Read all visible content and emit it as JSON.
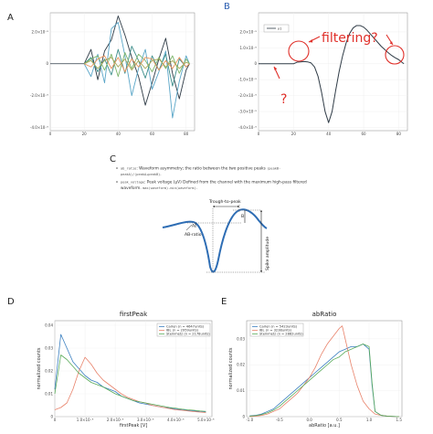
{
  "panel_letters": {
    "A": "A",
    "B": "B",
    "C": "C",
    "D": "D",
    "E": "E"
  },
  "colors": {
    "dark": "#2f3b46",
    "blue": "#5aa6c8",
    "teal": "#3c8d8a",
    "green": "#7cb56a",
    "orange": "#e8925a",
    "olive": "#a7a857",
    "red": "#e0302a",
    "spike": "#2e6db4",
    "carlen": "#3a7fc0",
    "ibl": "#e8826a",
    "steinmetz": "#5aab5a"
  },
  "chart_data": [
    {
      "id": "A",
      "type": "line",
      "xlim": [
        0,
        85
      ],
      "ylim": [
        -4.2e-05,
        3.2e-05
      ],
      "xticks": [
        0,
        20,
        40,
        60,
        80
      ],
      "yticks": [
        {
          "v": 2e-05,
          "label": "2.0×10⁻⁵"
        },
        {
          "v": 0,
          "label": "0"
        },
        {
          "v": -2e-05,
          "label": "-2.0×10⁻⁵"
        },
        {
          "v": -4e-05,
          "label": "-4.0×10⁻⁵"
        }
      ],
      "flat_x": [
        0,
        20
      ],
      "series": [
        {
          "color": "dark",
          "x": [
            20,
            24,
            28,
            32,
            36,
            40,
            44,
            48,
            52,
            56,
            60,
            64,
            68,
            72,
            76,
            80,
            82
          ],
          "y": [
            0,
            9e-06,
            -1e-05,
            8e-06,
            1.5e-05,
            3e-05,
            1.8e-05,
            4e-06,
            -8e-06,
            -2.6e-05,
            -1.2e-05,
            3e-06,
            1.6e-05,
            -6e-06,
            -2.2e-05,
            -4e-06,
            0
          ]
        },
        {
          "color": "blue",
          "x": [
            20,
            24,
            28,
            32,
            36,
            40,
            44,
            48,
            52,
            56,
            60,
            64,
            68,
            72,
            76,
            80,
            82
          ],
          "y": [
            0,
            -8e-06,
            6e-06,
            -1.2e-05,
            2.2e-05,
            2.6e-05,
            5e-06,
            -2e-05,
            -3e-06,
            9e-06,
            -1.6e-05,
            -5e-06,
            8e-06,
            -3.4e-05,
            -1.1e-05,
            5e-06,
            0
          ]
        },
        {
          "color": "teal",
          "x": [
            20,
            24,
            28,
            32,
            36,
            40,
            44,
            48,
            52,
            56,
            60,
            64,
            68,
            72,
            76,
            80,
            82
          ],
          "y": [
            0,
            4e-06,
            -5e-06,
            3e-06,
            -7e-06,
            9e-06,
            -6e-06,
            1.1e-05,
            2e-06,
            -9e-06,
            5e-06,
            -4e-06,
            6e-06,
            -1.4e-05,
            3e-06,
            -2e-06,
            0
          ]
        },
        {
          "color": "green",
          "x": [
            20,
            24,
            28,
            32,
            36,
            40,
            44,
            48,
            52,
            56,
            60,
            64,
            68,
            72,
            76,
            80,
            82
          ],
          "y": [
            0,
            3e-06,
            5e-06,
            -4e-06,
            6e-06,
            -8e-06,
            7e-06,
            -3e-06,
            6e-06,
            2e-06,
            -5e-06,
            4e-06,
            -3e-06,
            5e-06,
            -6e-06,
            3e-06,
            0
          ]
        },
        {
          "color": "orange",
          "x": [
            20,
            24,
            28,
            32,
            36,
            40,
            44,
            48,
            52,
            56,
            60,
            64,
            68,
            72,
            76,
            80,
            82
          ],
          "y": [
            0,
            -2e-06,
            3e-06,
            5e-06,
            -3e-06,
            4e-06,
            -5e-06,
            3e-06,
            -2e-06,
            4e-06,
            3e-06,
            -4e-06,
            2e-06,
            -3e-06,
            4e-06,
            -2e-06,
            0
          ]
        },
        {
          "color": "olive",
          "x": [
            20,
            24,
            28,
            32,
            36,
            40,
            44,
            48,
            52,
            56,
            60,
            64,
            68,
            72,
            76,
            80,
            82
          ],
          "y": [
            0,
            2e-06,
            -3e-06,
            2e-06,
            4e-06,
            -2e-06,
            3e-06,
            -4e-06,
            2e-06,
            -3e-06,
            2e-06,
            3e-06,
            -2e-06,
            2e-06,
            -3e-06,
            1e-06,
            0
          ]
        }
      ]
    },
    {
      "id": "B",
      "type": "line",
      "xlim": [
        0,
        85
      ],
      "ylim": [
        -4.2e-05,
        3.2e-05
      ],
      "xticks": [
        0,
        20,
        40,
        60,
        80
      ],
      "yticks": [
        {
          "v": 2e-05,
          "label": "2.0×10⁻⁵"
        },
        {
          "v": 1e-05,
          "label": "1.0×10⁻⁵"
        },
        {
          "v": 0,
          "label": "0"
        },
        {
          "v": -1e-05,
          "label": "-1.0×10⁻⁵"
        },
        {
          "v": -2e-05,
          "label": "-2.0×10⁻⁵"
        },
        {
          "v": -3e-05,
          "label": "-3.0×10⁻⁵"
        },
        {
          "v": -4e-05,
          "label": "-4.0×10⁻⁵"
        }
      ],
      "legend": "y1",
      "series": [
        {
          "color": "dark",
          "x": [
            0,
            5,
            10,
            15,
            20,
            22,
            24,
            26,
            28,
            30,
            32,
            34,
            36,
            38,
            40,
            42,
            44,
            46,
            48,
            50,
            52,
            54,
            56,
            58,
            60,
            62,
            64,
            66,
            68,
            70,
            72,
            74,
            76,
            78,
            80,
            82,
            83
          ],
          "y": [
            0,
            0,
            0,
            0,
            0,
            1e-06,
            1.2e-06,
            1.4e-06,
            1.2e-06,
            5e-07,
            -2e-06,
            -8e-06,
            -1.8e-05,
            -3e-05,
            -3.7e-05,
            -3e-05,
            -1.7e-05,
            -5e-06,
            5e-06,
            1.3e-05,
            1.9e-05,
            2.25e-05,
            2.4e-05,
            2.4e-05,
            2.3e-05,
            2.1e-05,
            1.85e-05,
            1.6e-05,
            1.35e-05,
            1.1e-05,
            9e-06,
            7e-06,
            5.2e-06,
            3.8e-06,
            2.6e-06,
            8e-07,
            0
          ]
        }
      ],
      "annotations": {
        "filtering": "filtering?",
        "question": "?"
      }
    },
    {
      "id": "D",
      "type": "line",
      "title": "firstPeak",
      "xlabel": "firstPeak [V]",
      "ylabel": "normalized counts",
      "xlim": [
        0,
        5.2e-05
      ],
      "ylim": [
        0,
        0.042
      ],
      "xticks": [
        {
          "v": 0,
          "label": "0"
        },
        {
          "v": 1e-05,
          "label": "1.0×10⁻⁵"
        },
        {
          "v": 2e-05,
          "label": "2.0×10⁻⁵"
        },
        {
          "v": 3e-05,
          "label": "3.0×10⁻⁵"
        },
        {
          "v": 4e-05,
          "label": "4.0×10⁻⁵"
        },
        {
          "v": 5e-05,
          "label": "5.0×10⁻⁵"
        }
      ],
      "yticks": [
        {
          "v": 0,
          "label": "0"
        },
        {
          "v": 0.01,
          "label": "0.01"
        },
        {
          "v": 0.02,
          "label": "0.02"
        },
        {
          "v": 0.03,
          "label": "0.03"
        },
        {
          "v": 0.04,
          "label": "0.04"
        }
      ],
      "legend": [
        "Carlen (n = 4647units)",
        "IBL (n = 2959units)",
        "Steinmetz (n = 2178units)"
      ],
      "legend_position": "top-right",
      "series": [
        {
          "name": "Carlen (n = 4647units)",
          "color": "carlen",
          "x": [
            0,
            2e-06,
            4e-06,
            6e-06,
            8e-06,
            1e-05,
            1.2e-05,
            1.4e-05,
            1.6e-05,
            1.8e-05,
            2e-05,
            2.2e-05,
            2.4e-05,
            2.6e-05,
            2.8e-05,
            3e-05,
            3.2e-05,
            3.4e-05,
            3.6e-05,
            3.8e-05,
            4e-05,
            4.2e-05,
            4.4e-05,
            4.6e-05,
            4.8e-05,
            5e-05
          ],
          "y": [
            0.012,
            0.036,
            0.03,
            0.024,
            0.021,
            0.018,
            0.016,
            0.015,
            0.013,
            0.012,
            0.011,
            0.009,
            0.008,
            0.007,
            0.006,
            0.0055,
            0.005,
            0.0045,
            0.004,
            0.0038,
            0.0033,
            0.003,
            0.0027,
            0.0025,
            0.0022,
            0.002
          ]
        },
        {
          "name": "IBL (n = 2959units)",
          "color": "ibl",
          "x": [
            0,
            2e-06,
            4e-06,
            6e-06,
            8e-06,
            1e-05,
            1.2e-05,
            1.4e-05,
            1.6e-05,
            1.8e-05,
            2e-05,
            2.2e-05,
            2.4e-05,
            2.6e-05,
            2.8e-05,
            3e-05,
            3.2e-05,
            3.4e-05,
            3.6e-05,
            3.8e-05,
            4e-05,
            4.2e-05,
            4.4e-05,
            4.6e-05,
            4.8e-05,
            5e-05
          ],
          "y": [
            0.003,
            0.004,
            0.006,
            0.012,
            0.02,
            0.026,
            0.023,
            0.019,
            0.016,
            0.014,
            0.012,
            0.01,
            0.0085,
            0.0075,
            0.0065,
            0.006,
            0.005,
            0.0045,
            0.004,
            0.0035,
            0.003,
            0.0028,
            0.0025,
            0.0022,
            0.002,
            0.0018
          ]
        },
        {
          "name": "Steinmetz (n = 2178units)",
          "color": "steinmetz",
          "x": [
            0,
            2e-06,
            4e-06,
            6e-06,
            8e-06,
            1e-05,
            1.2e-05,
            1.4e-05,
            1.6e-05,
            1.8e-05,
            2e-05,
            2.2e-05,
            2.4e-05,
            2.6e-05,
            2.8e-05,
            3e-05,
            3.2e-05,
            3.4e-05,
            3.6e-05,
            3.8e-05,
            4e-05,
            4.2e-05,
            4.4e-05,
            4.6e-05,
            4.8e-05,
            5e-05
          ],
          "y": [
            0.01,
            0.027,
            0.025,
            0.022,
            0.019,
            0.017,
            0.015,
            0.014,
            0.013,
            0.0115,
            0.01,
            0.009,
            0.008,
            0.007,
            0.0065,
            0.006,
            0.0055,
            0.005,
            0.0045,
            0.004,
            0.0037,
            0.0033,
            0.003,
            0.0028,
            0.0025,
            0.0023
          ]
        }
      ]
    },
    {
      "id": "E",
      "type": "line",
      "title": "abRatio",
      "xlabel": "abRatio [a.u.]",
      "ylabel": "normalized counts",
      "xlim": [
        -1.05,
        1.55
      ],
      "ylim": [
        0,
        0.037
      ],
      "xticks": [
        {
          "v": -1.0,
          "label": "-1.0"
        },
        {
          "v": -0.5,
          "label": "-0.5"
        },
        {
          "v": 0,
          "label": "0.0"
        },
        {
          "v": 0.5,
          "label": "0.5"
        },
        {
          "v": 1.0,
          "label": "1.0"
        },
        {
          "v": 1.5,
          "label": "1.5"
        }
      ],
      "yticks": [
        {
          "v": 0,
          "label": "0"
        },
        {
          "v": 0.01,
          "label": "0.01"
        },
        {
          "v": 0.02,
          "label": "0.02"
        },
        {
          "v": 0.03,
          "label": "0.03"
        }
      ],
      "legend": [
        "Carlen (n = 5423units)",
        "IBL (n = 3238units)",
        "Steinmetz (n = 2882units)"
      ],
      "legend_position": "top-left",
      "series": [
        {
          "name": "Carlen (n = 5423units)",
          "color": "carlen",
          "x": [
            -1.0,
            -0.9,
            -0.8,
            -0.7,
            -0.6,
            -0.5,
            -0.4,
            -0.3,
            -0.2,
            -0.1,
            0,
            0.1,
            0.2,
            0.3,
            0.4,
            0.5,
            0.6,
            0.7,
            0.8,
            0.9,
            1.0,
            1.05,
            1.1,
            1.2,
            1.3,
            1.4,
            1.5
          ],
          "y": [
            0.0003,
            0.0005,
            0.001,
            0.002,
            0.003,
            0.005,
            0.007,
            0.009,
            0.011,
            0.013,
            0.015,
            0.017,
            0.019,
            0.021,
            0.023,
            0.025,
            0.026,
            0.027,
            0.027,
            0.028,
            0.026,
            0.012,
            0.002,
            0.0005,
            0.0002,
            0.0001,
            0
          ]
        },
        {
          "name": "IBL (n = 3238units)",
          "color": "ibl",
          "x": [
            -1.0,
            -0.9,
            -0.8,
            -0.7,
            -0.6,
            -0.5,
            -0.4,
            -0.3,
            -0.2,
            -0.1,
            0,
            0.1,
            0.2,
            0.3,
            0.4,
            0.5,
            0.55,
            0.6,
            0.7,
            0.8,
            0.9,
            1.0,
            1.1,
            1.2,
            1.3,
            1.4,
            1.5
          ],
          "y": [
            0,
            0.0002,
            0.0005,
            0.001,
            0.002,
            0.003,
            0.005,
            0.007,
            0.009,
            0.012,
            0.015,
            0.019,
            0.024,
            0.028,
            0.031,
            0.034,
            0.035,
            0.03,
            0.02,
            0.012,
            0.006,
            0.003,
            0.001,
            0.0005,
            0.0002,
            0.0001,
            0
          ]
        },
        {
          "name": "Steinmetz (n = 2882units)",
          "color": "steinmetz",
          "x": [
            -1.0,
            -0.9,
            -0.8,
            -0.7,
            -0.6,
            -0.5,
            -0.4,
            -0.3,
            -0.2,
            -0.1,
            0,
            0.1,
            0.2,
            0.3,
            0.4,
            0.5,
            0.6,
            0.7,
            0.8,
            0.9,
            1.0,
            1.05,
            1.1,
            1.2,
            1.3,
            1.4,
            1.5
          ],
          "y": [
            0.0002,
            0.0004,
            0.0008,
            0.0015,
            0.0025,
            0.004,
            0.006,
            0.008,
            0.01,
            0.012,
            0.014,
            0.016,
            0.018,
            0.02,
            0.022,
            0.023,
            0.025,
            0.026,
            0.027,
            0.028,
            0.027,
            0.013,
            0.002,
            0.0005,
            0.0002,
            0.0001,
            0
          ]
        }
      ]
    }
  ],
  "panel_C": {
    "bullets": [
      {
        "code": "ab_ratio",
        "text": ": Waveform asymmetry; the ratio between the two positive peaks ",
        "code2": "(peakB-",
        "line2_code": "peakA)/(peakA+peakB)",
        "line2_text": "."
      },
      {
        "code": "peak_voltage",
        "text": ": Peak voltage (µV) Defined from the channel with the maximum high-pass filtered",
        "line2_text": "waveform. ",
        "line2_code": "max(waveform)-min(waveform)",
        "line2_tail": "."
      }
    ],
    "labels": {
      "trough_to_peak": "Trough-to-peak",
      "a": "A",
      "b": "B",
      "ab_ratio": "AB-ratio",
      "spike_amplitude": "Spike amplitude"
    }
  }
}
